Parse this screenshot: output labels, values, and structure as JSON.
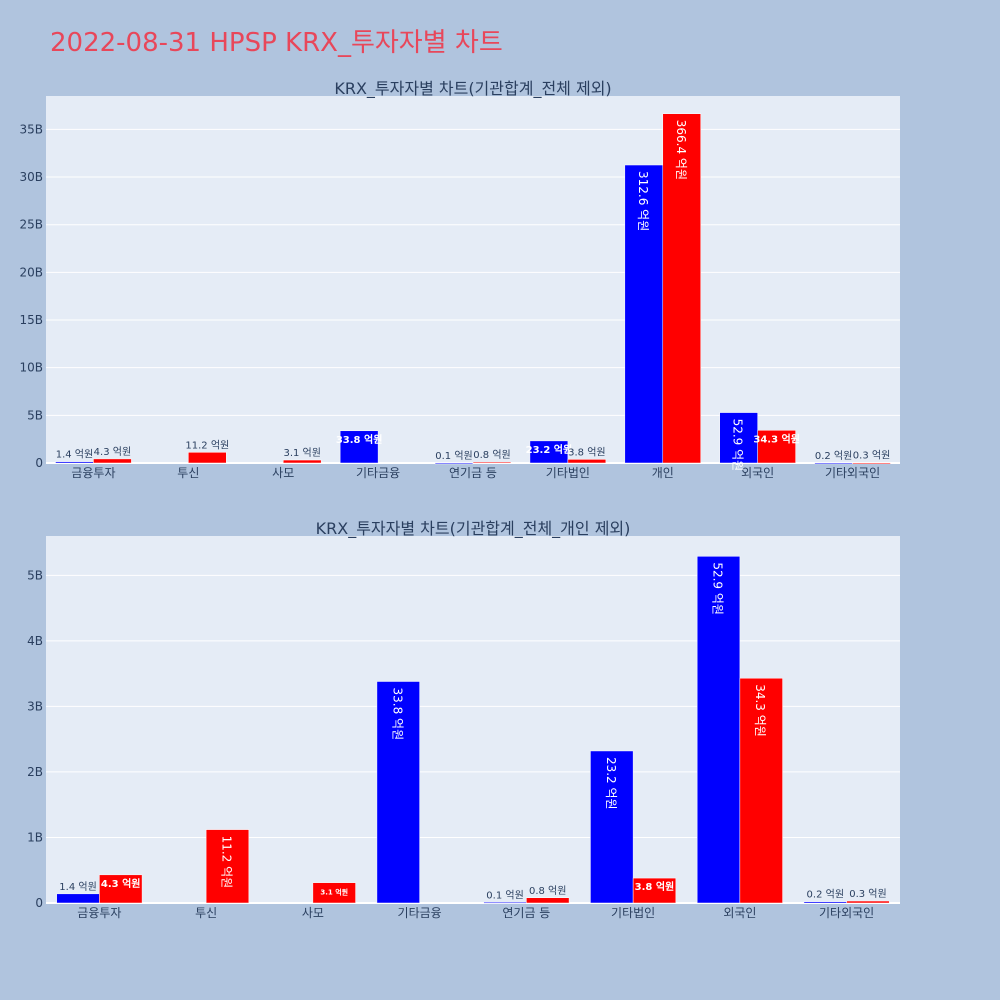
{
  "title": "2022-08-31 HPSP KRX_투자자별 차트",
  "colors": {
    "buy": "#0000ff",
    "sell": "#ff0000",
    "plot_bg": "#e5ecf6",
    "page_bg": "#b0c4de",
    "title": "#e8475a"
  },
  "chart_data": [
    {
      "type": "bar",
      "title": "KRX_투자자별 차트(기관합계_전체 제외)",
      "categories": [
        "금융투자",
        "투신",
        "사모",
        "기타금융",
        "연기금 등",
        "기타법인",
        "개인",
        "외국인",
        "기타외국인"
      ],
      "series": [
        {
          "values": [
            140000000,
            0,
            0,
            3380000000,
            10000000,
            2320000000,
            31260000000,
            5290000000,
            20000000
          ],
          "labels": [
            "1.4 억원",
            "",
            "",
            "33.8 억원",
            "0.1 억원",
            "23.2 억원",
            "312.6 억원",
            "52.9 억원",
            "0.2 억원"
          ]
        },
        {
          "values": [
            430000000,
            1120000000,
            310000000,
            0,
            80000000,
            380000000,
            36640000000,
            3430000000,
            30000000
          ],
          "labels": [
            "4.3 억원",
            "11.2 억원",
            "3.1 억원",
            "",
            "0.8 억원",
            "3.8 억원",
            "366.4 억원",
            "34.3 억원",
            "0.3 억원"
          ]
        }
      ],
      "ylim": [
        0,
        38500000000
      ],
      "yticks": [
        0,
        5000000000,
        10000000000,
        15000000000,
        20000000000,
        25000000000,
        30000000000,
        35000000000
      ],
      "ytick_labels": [
        "0",
        "5B",
        "10B",
        "15B",
        "20B",
        "25B",
        "30B",
        "35B"
      ],
      "grid": true
    },
    {
      "type": "bar",
      "title": "KRX_투자자별 차트(기관합계_전체_개인 제외)",
      "categories": [
        "금융투자",
        "투신",
        "사모",
        "기타금융",
        "연기금 등",
        "기타법인",
        "외국인",
        "기타외국인"
      ],
      "series": [
        {
          "values": [
            140000000,
            0,
            0,
            3380000000,
            10000000,
            2320000000,
            5290000000,
            20000000
          ],
          "labels": [
            "1.4 억원",
            "",
            "",
            "33.8 억원",
            "0.1 억원",
            "23.2 억원",
            "52.9 억원",
            "0.2 억원"
          ]
        },
        {
          "values": [
            430000000,
            1120000000,
            310000000,
            0,
            80000000,
            380000000,
            3430000000,
            30000000
          ],
          "labels": [
            "4.3 억원",
            "11.2 억원",
            "3.1 억원",
            "",
            "0.8 억원",
            "3.8 억원",
            "34.3 억원",
            "0.3 억원"
          ]
        }
      ],
      "ylim": [
        0,
        5600000000
      ],
      "yticks": [
        0,
        1000000000,
        2000000000,
        3000000000,
        4000000000,
        5000000000
      ],
      "ytick_labels": [
        "0",
        "1B",
        "2B",
        "3B",
        "4B",
        "5B"
      ],
      "grid": true
    }
  ]
}
